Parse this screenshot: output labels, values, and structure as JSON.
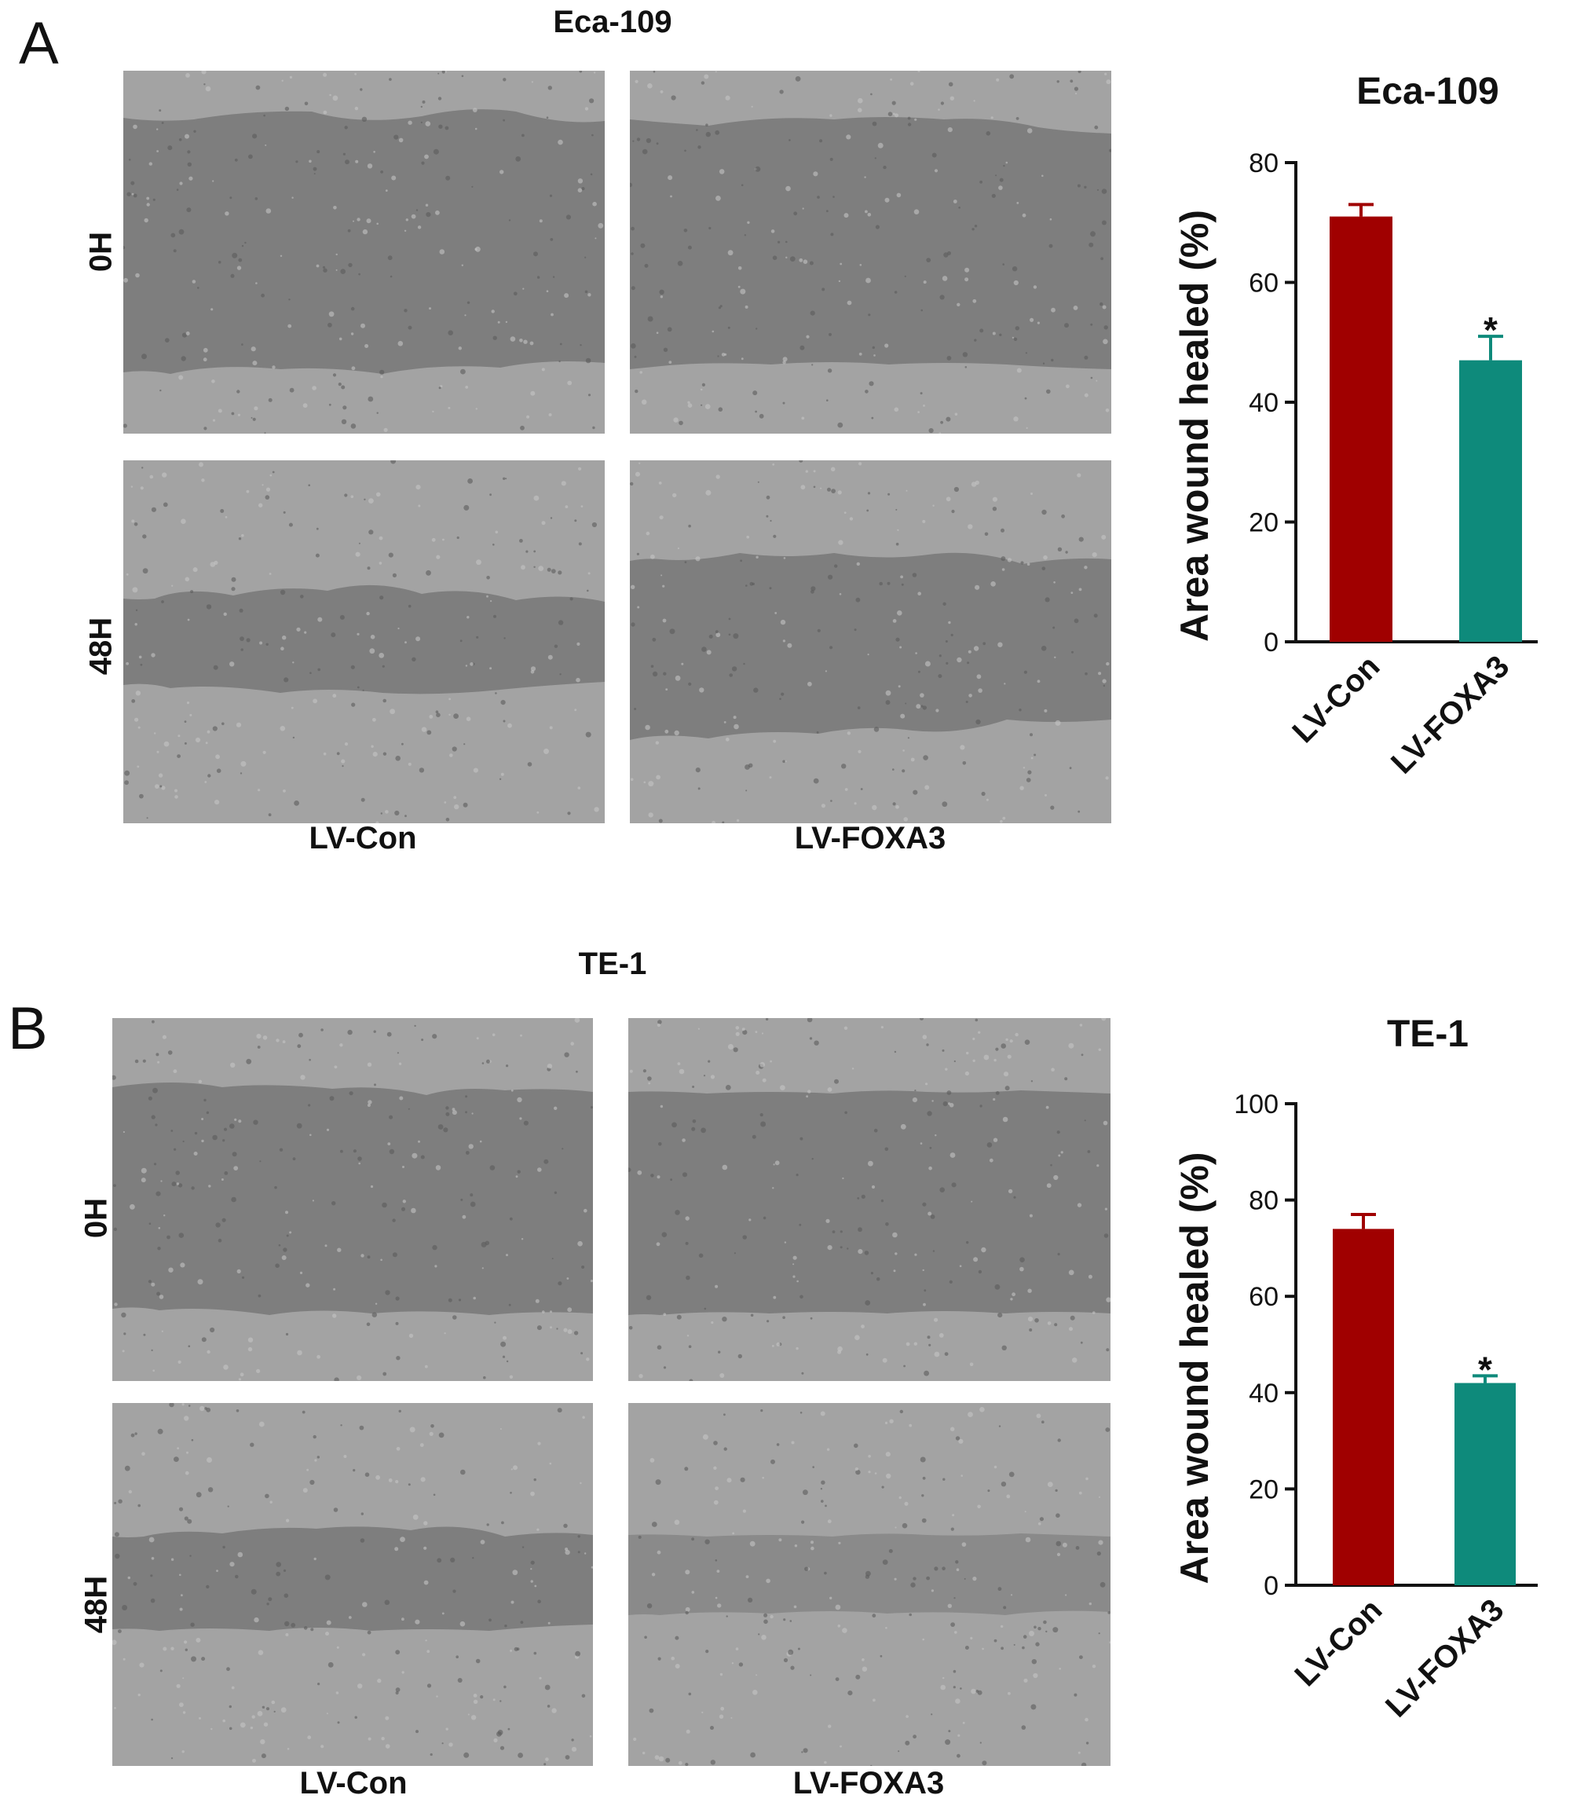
{
  "panelA": {
    "letter": "A",
    "title": "Eca-109",
    "rows": [
      "0H",
      "48H"
    ],
    "cols": [
      "LV-Con",
      "LV-FOXA3"
    ]
  },
  "panelB": {
    "letter": "B",
    "title": "TE-1",
    "rows": [
      "0H",
      "48H"
    ],
    "cols": [
      "LV-Con",
      "LV-FOXA3"
    ]
  },
  "colors": {
    "con": "#A00000",
    "foxa3": "#0E8A7B",
    "micro_bg": "#7e7e7e",
    "cells": "#a9a9a9"
  },
  "chart_data": [
    {
      "type": "bar",
      "title": "Eca-109",
      "ylabel": "Area wound healed (%)",
      "categories": [
        "LV-Con",
        "LV-FOXA3"
      ],
      "values": [
        71,
        47
      ],
      "errors": [
        2,
        4
      ],
      "significance": [
        "",
        "*"
      ],
      "ylim": [
        0,
        80
      ],
      "yticks": [
        0,
        20,
        40,
        60,
        80
      ]
    },
    {
      "type": "bar",
      "title": "TE-1",
      "ylabel": "Area wound healed (%)",
      "categories": [
        "LV-Con",
        "LV-FOXA3"
      ],
      "values": [
        74,
        42
      ],
      "errors": [
        3,
        1.5
      ],
      "significance": [
        "",
        "*"
      ],
      "ylim": [
        0,
        100
      ],
      "yticks": [
        0,
        20,
        40,
        60,
        80,
        100
      ]
    }
  ]
}
